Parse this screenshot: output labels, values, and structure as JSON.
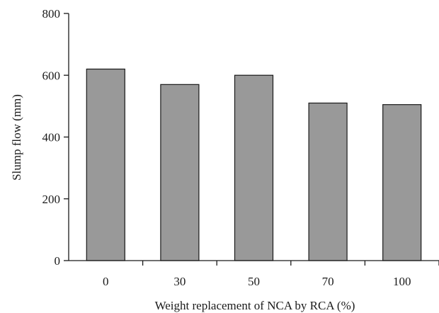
{
  "chart_data": {
    "type": "bar",
    "categories": [
      "0",
      "30",
      "50",
      "70",
      "100"
    ],
    "values": [
      620,
      570,
      600,
      510,
      505
    ],
    "title": "",
    "xlabel": "Weight replacement of NCA by RCA (%)",
    "ylabel": "Slump flow (mm)",
    "ylim": [
      0,
      800
    ],
    "yticks": [
      "0",
      "200",
      "400",
      "600",
      "800"
    ],
    "grid": false,
    "legend": "none",
    "bar_color": "#999999",
    "bar_edge_color": "#1a1a1a"
  }
}
